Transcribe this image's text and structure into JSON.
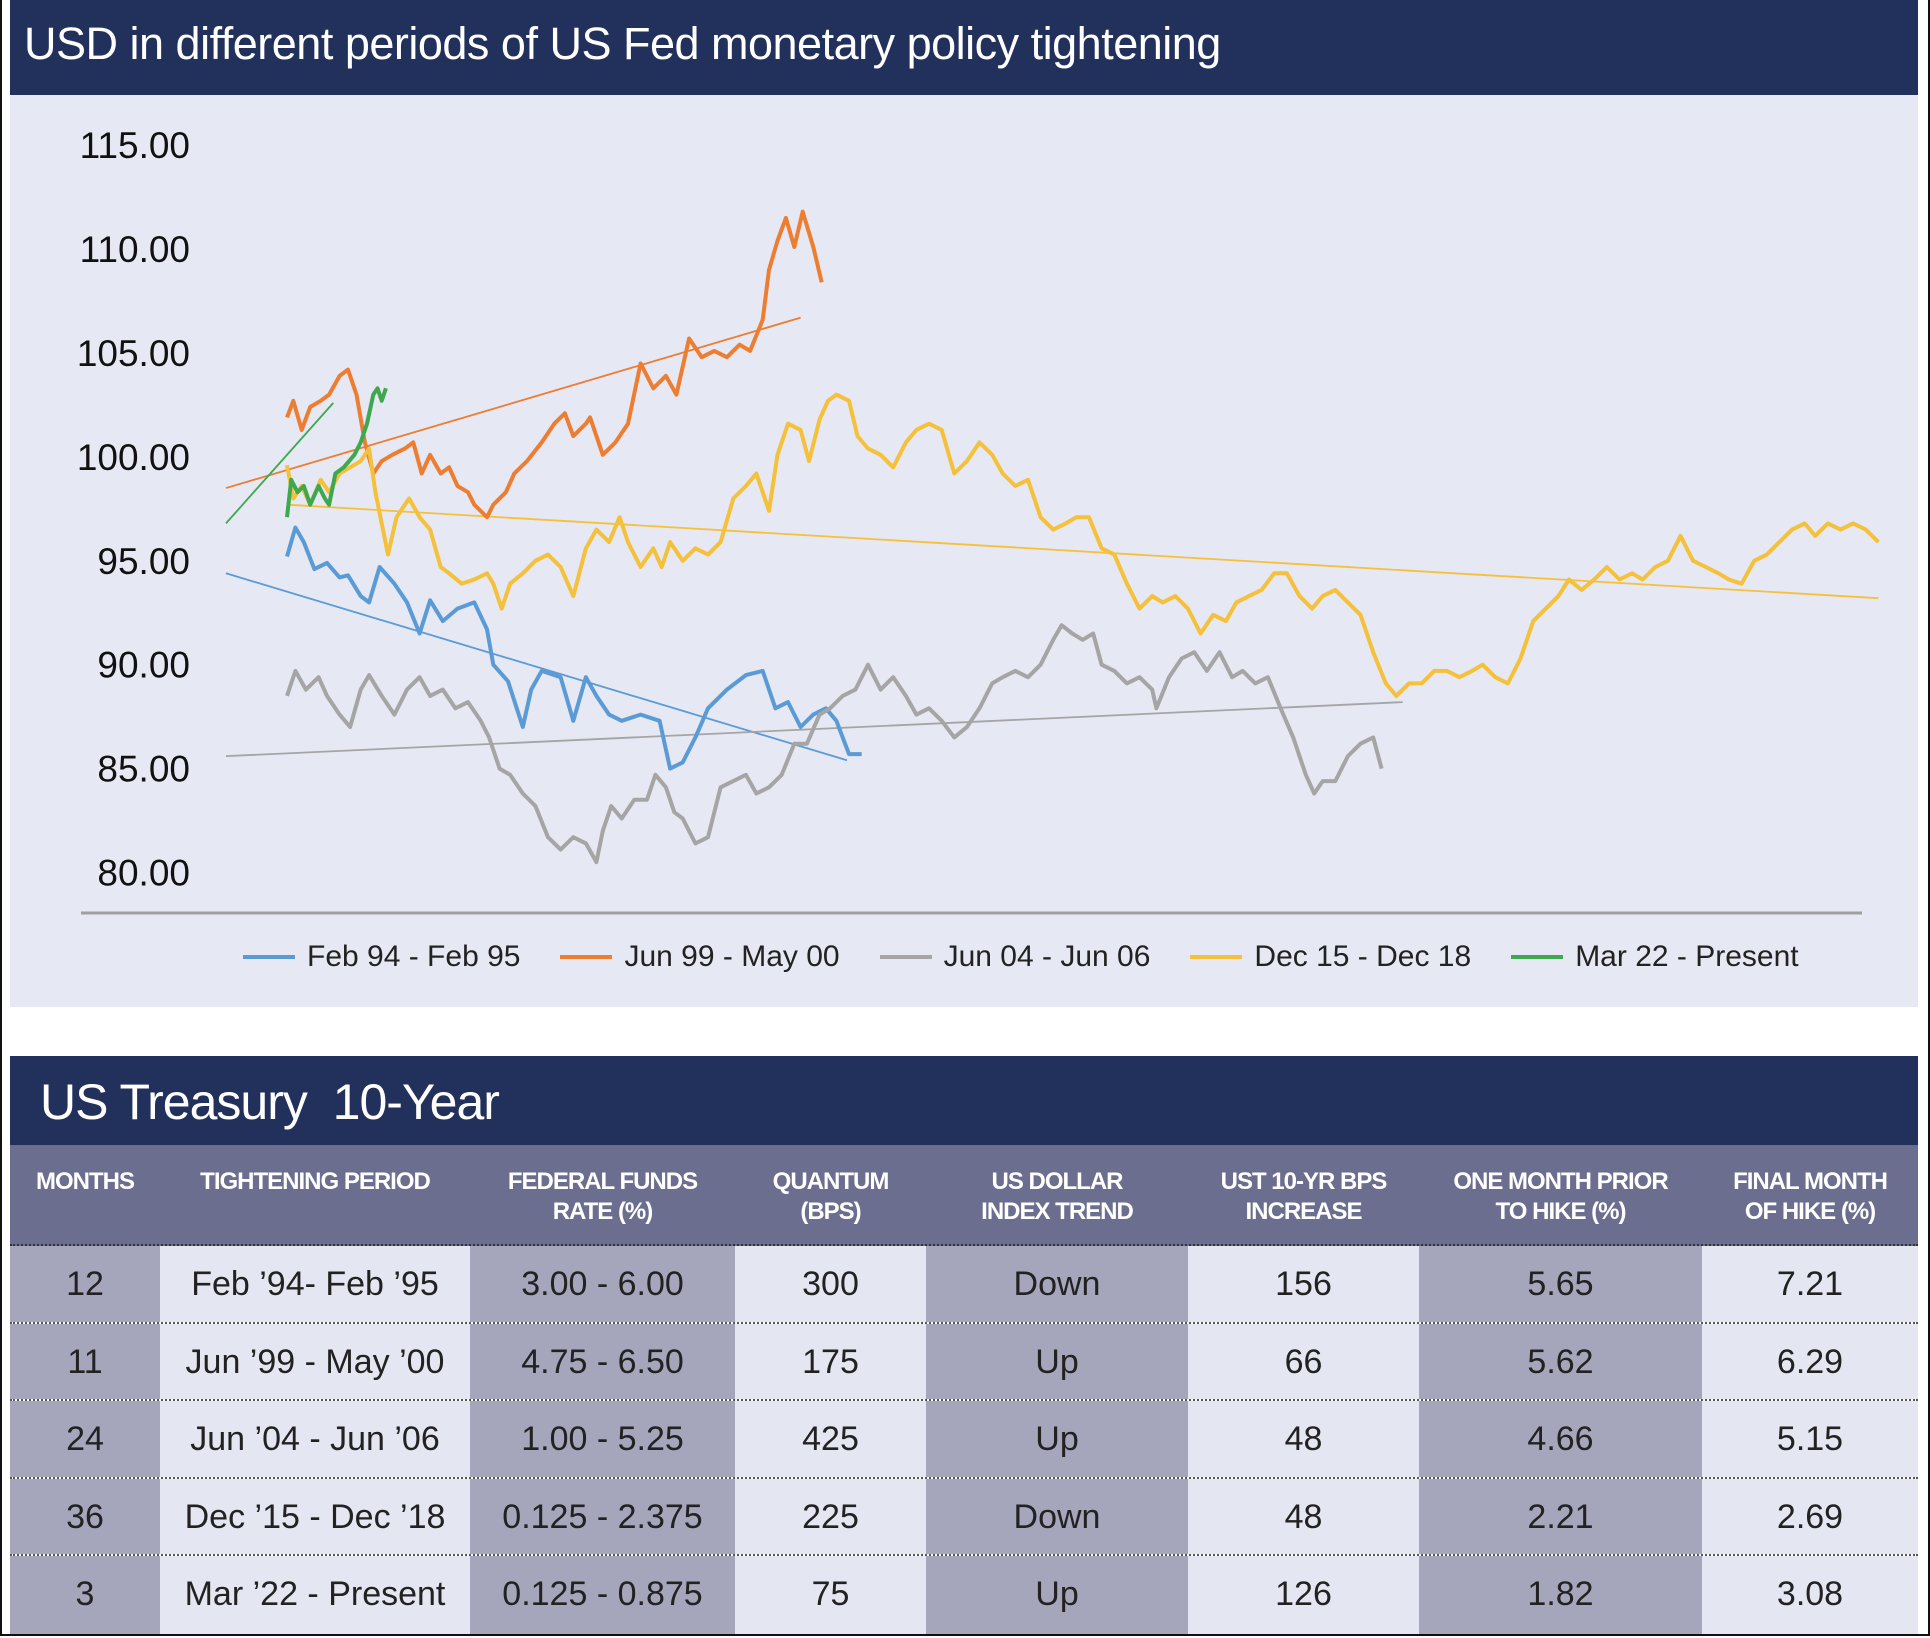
{
  "chart_title": "USD in different periods of US Fed monetary policy tightening",
  "chart_data": {
    "type": "line",
    "title": "USD in different periods of US Fed monetary policy tightening",
    "xlabel": "",
    "ylabel": "",
    "ylim": [
      80,
      115
    ],
    "yticks": [
      "115.00",
      "110.00",
      "105.00",
      "100.00",
      "95.00",
      "90.00",
      "85.00",
      "80.00"
    ],
    "ytick_values": [
      115,
      110,
      105,
      100,
      95,
      90,
      85,
      80
    ],
    "grid": false,
    "legend_position": "bottom",
    "series": [
      {
        "name": "Feb 94 - Feb 95",
        "color": "#5b9bd5",
        "x": [
          0,
          4,
          8,
          13,
          19,
          25,
          29,
          35,
          39,
          44,
          51,
          57,
          63,
          68,
          74,
          81,
          89,
          95,
          98,
          105,
          112,
          116,
          121,
          130,
          136,
          142,
          147,
          153,
          159,
          168,
          177,
          182,
          188,
          194,
          200,
          209,
          218,
          226,
          232,
          238,
          244,
          250,
          256,
          261,
          267,
          273
        ],
        "y": [
          95.2,
          96.6,
          95.9,
          94.6,
          94.9,
          94.2,
          94.3,
          93.3,
          93.0,
          94.7,
          93.9,
          93.0,
          91.5,
          93.1,
          92.1,
          92.7,
          93.0,
          91.7,
          90.0,
          89.2,
          87.0,
          88.8,
          89.7,
          89.4,
          87.3,
          89.4,
          88.5,
          87.6,
          87.3,
          87.6,
          87.3,
          85.0,
          85.3,
          86.5,
          87.9,
          88.8,
          89.5,
          89.7,
          87.9,
          88.2,
          87.0,
          87.6,
          87.9,
          87.3,
          85.7,
          85.7
        ],
        "trend": {
          "x": [
            -29,
            266
          ],
          "y": [
            94.4,
            85.4
          ]
        }
      },
      {
        "name": "Jun 99 - May 00",
        "color": "#ed7d31",
        "x": [
          0,
          3,
          7,
          11,
          16,
          20,
          25,
          29,
          33,
          37,
          41,
          45,
          50,
          56,
          60,
          64,
          68,
          73,
          77,
          81,
          86,
          89,
          95,
          98,
          104,
          108,
          114,
          121,
          127,
          132,
          136,
          142,
          144,
          150,
          156,
          162,
          168,
          174,
          180,
          185,
          191,
          197,
          203,
          209,
          215,
          220,
          226,
          229,
          233,
          237,
          241,
          245,
          250,
          254
        ],
        "y": [
          101.9,
          102.7,
          101.3,
          102.4,
          102.7,
          103.0,
          103.9,
          104.2,
          103.0,
          100.7,
          99.2,
          99.8,
          100.1,
          100.4,
          100.7,
          99.2,
          100.1,
          99.2,
          99.5,
          98.6,
          98.3,
          97.7,
          97.1,
          97.7,
          98.3,
          99.2,
          99.8,
          100.7,
          101.6,
          102.1,
          101.0,
          101.6,
          101.9,
          100.1,
          100.7,
          101.6,
          104.5,
          103.3,
          103.9,
          103.0,
          105.7,
          104.8,
          105.1,
          104.8,
          105.4,
          105.1,
          106.6,
          109.0,
          110.4,
          111.5,
          110.1,
          111.8,
          110.1,
          108.4
        ],
        "trend": {
          "x": [
            -29,
            244
          ],
          "y": [
            98.5,
            106.7
          ]
        }
      },
      {
        "name": "Jun 04 - Jun 06",
        "color": "#a5a5a5",
        "x": [
          0,
          4,
          9,
          15,
          19,
          25,
          30,
          35,
          39,
          45,
          51,
          57,
          63,
          68,
          74,
          80,
          86,
          92,
          96,
          101,
          106,
          112,
          118,
          124,
          130,
          136,
          142,
          147,
          150,
          154,
          159,
          165,
          171,
          175,
          180,
          184,
          188,
          194,
          200,
          206,
          212,
          218,
          223,
          229,
          235,
          241,
          247,
          253,
          258,
          264,
          270,
          276,
          282,
          288,
          294,
          299,
          305,
          311,
          317,
          323,
          329,
          335,
          340,
          346,
          352,
          358,
          364,
          368,
          373,
          378,
          383,
          387,
          393,
          399,
          405,
          411,
          413,
          419,
          425,
          431,
          437,
          443,
          449,
          454,
          460,
          466,
          472,
          478,
          484,
          488,
          492,
          498,
          504,
          510,
          516,
          520
        ],
        "y": [
          88.5,
          89.7,
          88.8,
          89.4,
          88.5,
          87.6,
          87.0,
          88.8,
          89.5,
          88.5,
          87.6,
          88.8,
          89.4,
          88.5,
          88.8,
          87.9,
          88.2,
          87.3,
          86.5,
          85.0,
          84.7,
          83.8,
          83.2,
          81.7,
          81.1,
          81.7,
          81.4,
          80.5,
          82.0,
          83.2,
          82.6,
          83.5,
          83.5,
          84.7,
          84.1,
          82.9,
          82.6,
          81.4,
          81.7,
          84.1,
          84.4,
          84.7,
          83.8,
          84.1,
          84.7,
          86.2,
          86.2,
          87.6,
          87.9,
          88.5,
          88.8,
          90.0,
          88.8,
          89.4,
          88.5,
          87.6,
          87.9,
          87.3,
          86.5,
          87.0,
          87.9,
          89.1,
          89.4,
          89.7,
          89.4,
          90.0,
          91.2,
          91.9,
          91.5,
          91.2,
          91.5,
          90.0,
          89.7,
          89.1,
          89.4,
          88.8,
          87.9,
          89.4,
          90.3,
          90.6,
          89.7,
          90.6,
          89.4,
          89.7,
          89.1,
          89.4,
          87.9,
          86.5,
          84.7,
          83.8,
          84.4,
          84.4,
          85.6,
          86.2,
          86.5,
          85.0
        ],
        "trend": {
          "x": [
            -29,
            530
          ],
          "y": [
            85.6,
            88.2
          ]
        }
      },
      {
        "name": "Dec 15 - Dec 18",
        "color": "#f5c03a",
        "x": [
          0,
          3,
          7,
          11,
          16,
          20,
          25,
          30,
          35,
          39,
          42,
          48,
          52,
          58,
          63,
          68,
          73,
          77,
          83,
          89,
          95,
          98,
          102,
          106,
          112,
          118,
          124,
          130,
          136,
          142,
          147,
          153,
          158,
          162,
          168,
          174,
          178,
          182,
          188,
          194,
          200,
          206,
          212,
          218,
          223,
          229,
          233,
          238,
          244,
          248,
          253,
          257,
          261,
          267,
          271,
          276,
          282,
          288,
          294,
          299,
          305,
          311,
          317,
          323,
          329,
          335,
          340,
          346,
          352,
          358,
          364,
          370,
          375,
          381,
          387,
          393,
          399,
          405,
          411,
          416,
          422,
          428,
          434,
          440,
          446,
          451,
          457,
          463,
          469,
          475,
          481,
          487,
          492,
          498,
          504,
          510,
          516,
          522,
          527,
          533,
          539,
          545,
          551,
          557,
          563,
          568,
          574,
          580,
          586,
          592,
          598,
          604,
          609,
          615,
          621,
          627,
          633,
          639,
          644,
          650,
          656,
          662,
          668,
          674,
          680,
          685,
          691,
          697,
          703,
          709,
          715,
          721,
          726,
          732,
          738,
          744,
          750,
          756
        ],
        "y": [
          99.6,
          98.0,
          98.6,
          97.7,
          98.9,
          98.3,
          99.2,
          99.5,
          99.8,
          100.4,
          98.3,
          95.3,
          97.1,
          98.0,
          97.1,
          96.5,
          94.7,
          94.4,
          93.9,
          94.1,
          94.4,
          93.9,
          92.7,
          93.9,
          94.4,
          95.0,
          95.3,
          94.7,
          93.3,
          95.6,
          96.5,
          95.9,
          97.1,
          95.9,
          94.7,
          95.6,
          94.7,
          95.9,
          95.0,
          95.6,
          95.3,
          95.9,
          98.0,
          98.6,
          99.2,
          97.4,
          100.1,
          101.6,
          101.3,
          99.8,
          101.8,
          102.7,
          103.0,
          102.7,
          101.0,
          100.4,
          100.1,
          99.5,
          100.7,
          101.3,
          101.6,
          101.3,
          99.2,
          99.8,
          100.7,
          100.1,
          99.2,
          98.6,
          98.9,
          97.1,
          96.5,
          96.8,
          97.1,
          97.1,
          95.6,
          95.3,
          93.9,
          92.7,
          93.3,
          93.0,
          93.3,
          92.7,
          91.5,
          92.4,
          92.1,
          93.0,
          93.3,
          93.6,
          94.4,
          94.4,
          93.3,
          92.7,
          93.3,
          93.6,
          93.0,
          92.4,
          90.6,
          89.1,
          88.5,
          89.1,
          89.1,
          89.7,
          89.7,
          89.4,
          89.7,
          90.0,
          89.4,
          89.1,
          90.3,
          92.1,
          92.7,
          93.3,
          94.1,
          93.6,
          94.1,
          94.7,
          94.1,
          94.4,
          94.1,
          94.7,
          95.0,
          96.2,
          95.0,
          94.7,
          94.4,
          94.1,
          93.9,
          95.0,
          95.3,
          95.9,
          96.5,
          96.8,
          96.2,
          96.8,
          96.5,
          96.8,
          96.5,
          95.9
        ],
        "trend": {
          "x": [
            0,
            756
          ],
          "y": [
            97.7,
            93.2
          ]
        }
      },
      {
        "name": "Mar 22 - Present",
        "color": "#3ea84f",
        "x": [
          0,
          2,
          5,
          8,
          11,
          15,
          18,
          20,
          23,
          27,
          32,
          35,
          38,
          41,
          43,
          45,
          47
        ],
        "y": [
          97.1,
          98.9,
          98.3,
          98.6,
          97.7,
          98.6,
          98.0,
          97.7,
          99.2,
          99.5,
          100.1,
          100.7,
          101.6,
          103.0,
          103.3,
          102.7,
          103.3
        ],
        "trend": {
          "x": [
            -29,
            22
          ],
          "y": [
            96.8,
            102.6
          ]
        }
      }
    ]
  },
  "table": {
    "title": "US Treasury  10-Year",
    "headers": [
      [
        "MONTHS",
        ""
      ],
      [
        "TIGHTENING PERIOD",
        ""
      ],
      [
        "FEDERAL FUNDS",
        "RATE (%)"
      ],
      [
        "QUANTUM",
        "(BPS)"
      ],
      [
        "US DOLLAR",
        "INDEX TREND"
      ],
      [
        "UST 10-YR BPS",
        "INCREASE"
      ],
      [
        "ONE MONTH PRIOR",
        "TO HIKE (%)"
      ],
      [
        "FINAL MONTH",
        "OF HIKE (%)"
      ]
    ],
    "rows": [
      [
        "12",
        "Feb ’94- Feb ’95",
        "3.00 - 6.00",
        "300",
        "Down",
        "156",
        "5.65",
        "7.21"
      ],
      [
        "11",
        "Jun ’99 - May ’00",
        "4.75 - 6.50",
        "175",
        "Up",
        "66",
        "5.62",
        "6.29"
      ],
      [
        "24",
        "Jun ’04 - Jun ’06",
        "1.00 - 5.25",
        "425",
        "Up",
        "48",
        "4.66",
        "5.15"
      ],
      [
        "36",
        "Dec ’15 - Dec ’18",
        "0.125 - 2.375",
        "225",
        "Down",
        "48",
        "2.21",
        "2.69"
      ],
      [
        "3",
        "Mar ’22 - Present",
        "0.125 - 0.875",
        "75",
        "Up",
        "126",
        "1.82",
        "3.08"
      ]
    ]
  }
}
